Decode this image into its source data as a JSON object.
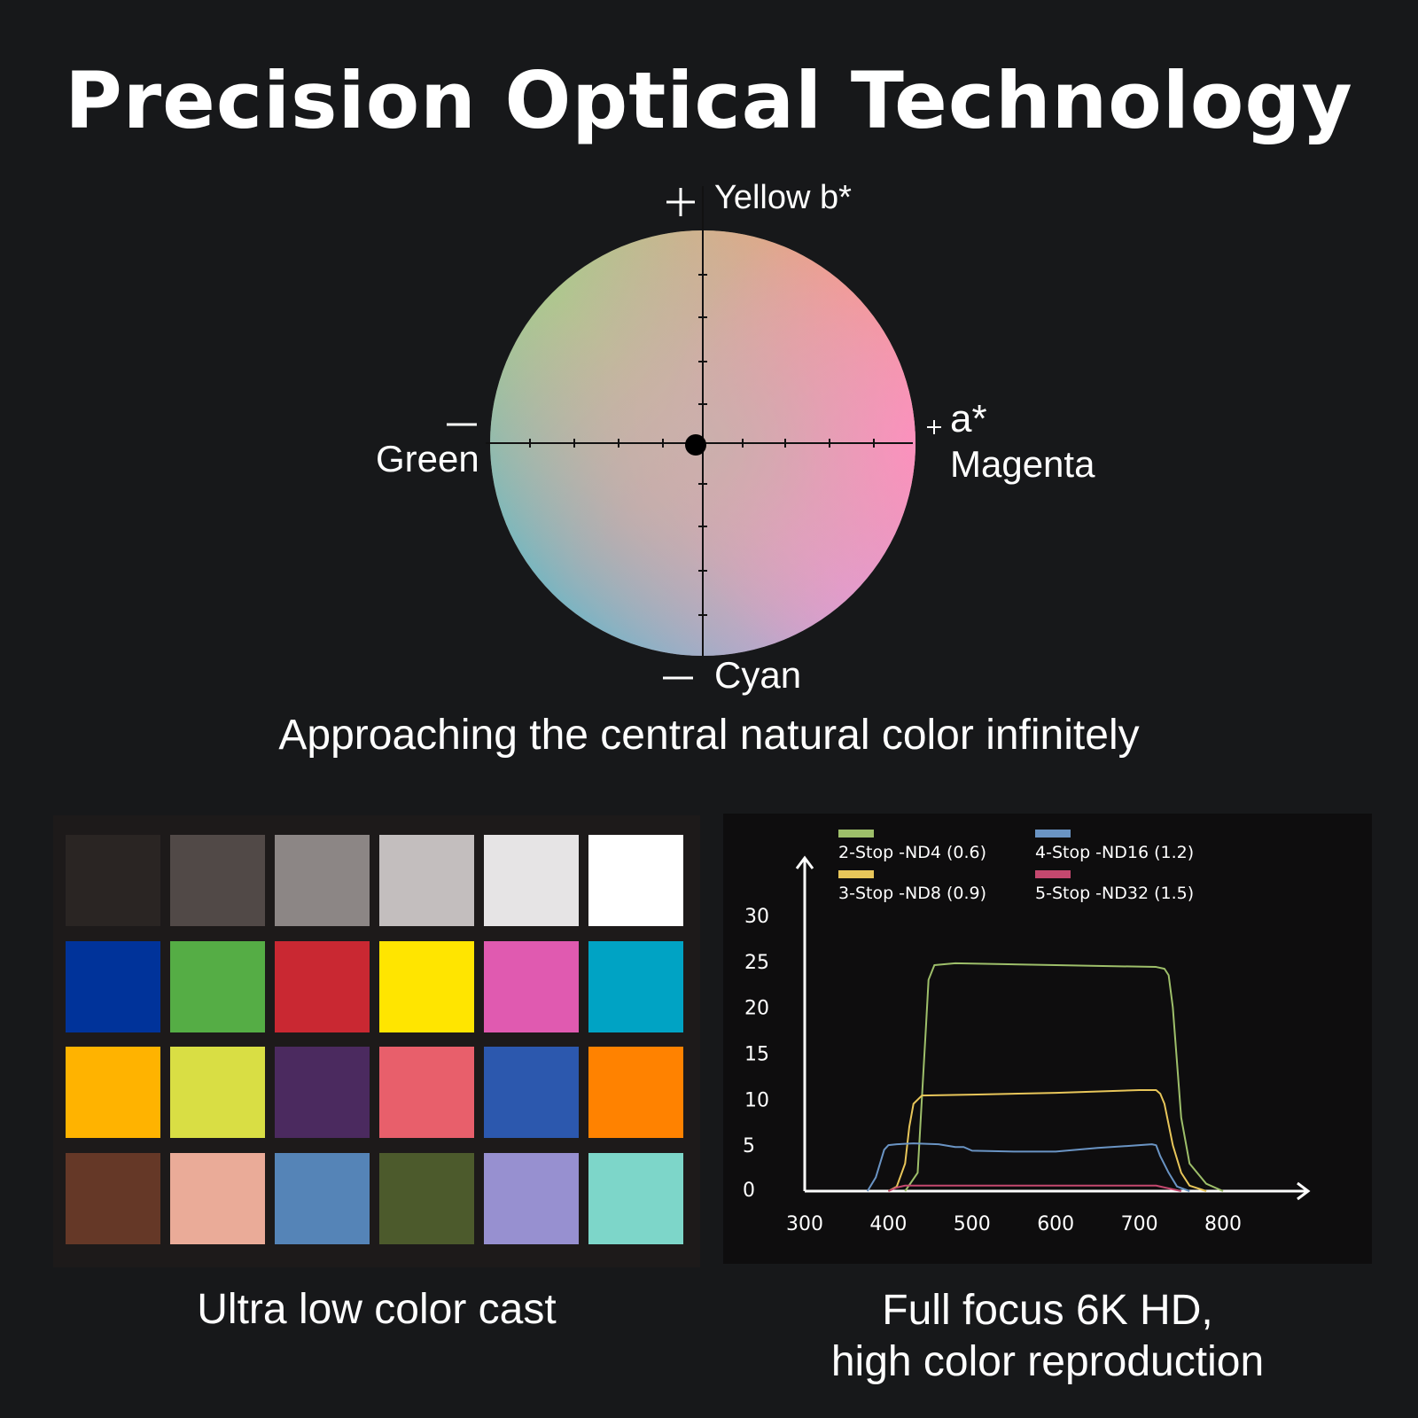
{
  "title": "Precision Optical Technology",
  "color_wheel": {
    "caption": "Approaching the central natural color infinitely",
    "top_label": "Yellow b*",
    "top_sign": "+",
    "bottom_label": "Cyan",
    "bottom_sign": "—",
    "left_label": "Green",
    "left_sign": "—",
    "right_label_top": "a*",
    "right_label_bottom": "Magenta",
    "right_sign": "+"
  },
  "color_checker": {
    "caption": "Ultra low color cast",
    "rows": [
      [
        "#2a2523",
        "#514947",
        "#8c8685",
        "#c3bebe",
        "#e6e4e5",
        "#ffffff"
      ],
      [
        "#00339a",
        "#55ad45",
        "#c92832",
        "#ffe500",
        "#e05ab0",
        "#00a3c4"
      ],
      [
        "#ffb300",
        "#d9de44",
        "#4b2a5f",
        "#e85f6b",
        "#2c58ae",
        "#ff8200"
      ],
      [
        "#653827",
        "#eaab98",
        "#5584b7",
        "#4c5a2c",
        "#9790d0",
        "#7dd6c9"
      ]
    ]
  },
  "spectrum_chart": {
    "caption_line1": "Full focus 6K HD,",
    "caption_line2": "high color reproduction"
  },
  "chart_data": {
    "type": "line",
    "title": "",
    "xlabel": "",
    "ylabel": "",
    "x_ticks": [
      "300",
      "400",
      "500",
      "600",
      "700",
      "800"
    ],
    "y_ticks": [
      "0",
      "5",
      "10",
      "15",
      "20",
      "25",
      "30"
    ],
    "xlim": [
      300,
      880
    ],
    "ylim": [
      0,
      32
    ],
    "legend_position": "top",
    "series": [
      {
        "name": "2-Stop -ND4 (0.6)",
        "color": "#9ebf6a",
        "x": [
          420,
          435,
          445,
          448,
          455,
          480,
          600,
          720,
          730,
          735,
          740,
          750,
          760,
          780,
          800
        ],
        "y": [
          0,
          2,
          18,
          23,
          24.6,
          24.8,
          24.6,
          24.4,
          24.2,
          23.5,
          20,
          8,
          3,
          0.8,
          0
        ]
      },
      {
        "name": "3-Stop -ND8 (0.9)",
        "color": "#e8c65a",
        "x": [
          400,
          410,
          420,
          425,
          430,
          440,
          500,
          600,
          700,
          720,
          725,
          730,
          740,
          750,
          760,
          780
        ],
        "y": [
          0,
          0.5,
          3,
          7,
          9.5,
          10.4,
          10.5,
          10.7,
          11,
          11,
          10.6,
          9.5,
          5,
          2,
          0.6,
          0
        ]
      },
      {
        "name": "4-Stop -ND16 (1.2)",
        "color": "#6a94c4",
        "x": [
          375,
          385,
          395,
          400,
          410,
          430,
          460,
          480,
          490,
          500,
          550,
          600,
          650,
          700,
          715,
          720,
          725,
          735,
          745,
          760
        ],
        "y": [
          0,
          1.5,
          4.5,
          5,
          5.1,
          5.2,
          5.1,
          4.8,
          4.8,
          4.4,
          4.3,
          4.3,
          4.7,
          5,
          5.1,
          5.0,
          3.8,
          2.0,
          0.5,
          0
        ]
      },
      {
        "name": "5-Stop -ND32 (1.5)",
        "color": "#c4486f",
        "x": [
          400,
          410,
          420,
          500,
          600,
          700,
          720,
          730,
          750
        ],
        "y": [
          0,
          0.4,
          0.6,
          0.6,
          0.6,
          0.6,
          0.6,
          0.4,
          0
        ]
      }
    ]
  }
}
